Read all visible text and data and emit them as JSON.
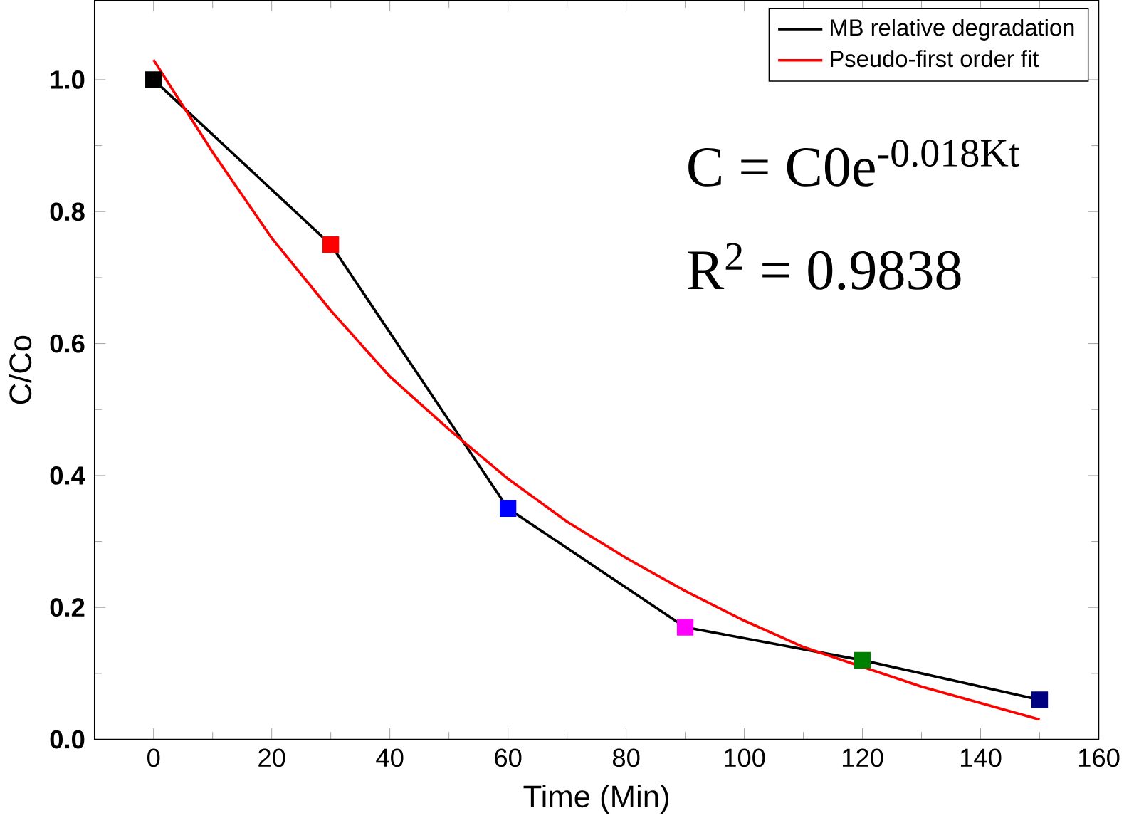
{
  "chart_data": {
    "type": "line",
    "xlabel": "Time (Min)",
    "ylabel": "C/Co",
    "x": [
      0,
      30,
      60,
      90,
      120,
      150
    ],
    "series": [
      {
        "name": "MB relative degradation",
        "color": "#000000",
        "marker": "square",
        "colors": [
          "#000000",
          "#ff0000",
          "#0000ff",
          "#ff00ff",
          "#008000",
          "#000080"
        ],
        "values": [
          1.0,
          0.75,
          0.35,
          0.17,
          0.12,
          0.06
        ]
      },
      {
        "name": "Pseudo-first order fit",
        "color": "#ff0000",
        "marker": "none",
        "x": [
          0,
          10,
          20,
          30,
          40,
          50,
          60,
          70,
          80,
          90,
          100,
          110,
          120,
          130,
          140,
          150
        ],
        "values": [
          1.03,
          0.89,
          0.76,
          0.65,
          0.55,
          0.47,
          0.395,
          0.33,
          0.275,
          0.225,
          0.18,
          0.14,
          0.11,
          0.08,
          0.055,
          0.03
        ]
      }
    ],
    "xlim": [
      -10,
      160
    ],
    "ylim": [
      0,
      1.12
    ],
    "xticks": [
      0,
      20,
      40,
      60,
      80,
      100,
      120,
      140,
      160
    ],
    "yticks": [
      {
        "value": 0,
        "label": "0.0"
      },
      0.2,
      0.4,
      0.6,
      0.8,
      {
        "value": 1,
        "label": "1.0"
      }
    ],
    "grid": false,
    "legend": "top right",
    "annotations": [
      "C = C0e$^{-0.018Kt}$",
      "R$^{2}$ = 0.9838"
    ]
  }
}
